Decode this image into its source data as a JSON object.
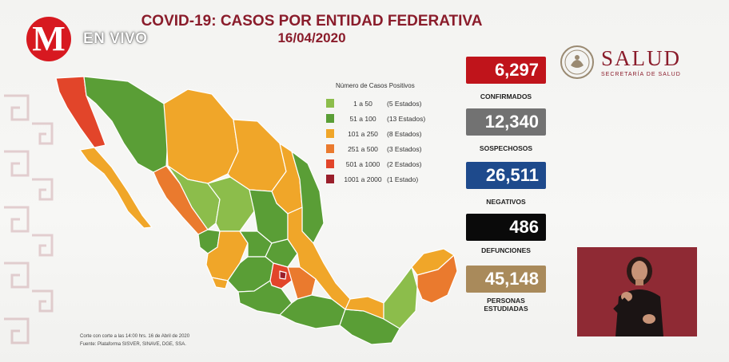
{
  "broadcast": {
    "logo_letter": "M",
    "live_label": "EN VIVO"
  },
  "header": {
    "title": "COVID-19: CASOS POR ENTIDAD FEDERATIVA",
    "date": "16/04/2020"
  },
  "agency": {
    "name": "SALUD",
    "subtitle": "SECRETARÍA DE SALUD"
  },
  "legend": {
    "title": "Número de Casos Positivos",
    "items": [
      {
        "range": "1 a 50",
        "count": "(5 Estados)",
        "color": "#8cbd4b"
      },
      {
        "range": "51 a 100",
        "count": "(13 Estados)",
        "color": "#5a9e36"
      },
      {
        "range": "101 a 250",
        "count": "(8 Estados)",
        "color": "#f0a629"
      },
      {
        "range": "251 a 500",
        "count": "(3 Estados)",
        "color": "#ea7a2e"
      },
      {
        "range": "501 a 1000",
        "count": "(2 Estados)",
        "color": "#e2452a"
      },
      {
        "range": "1001 a 2000",
        "count": "(1 Estado)",
        "color": "#9a1f2b"
      }
    ]
  },
  "stats": [
    {
      "value": "6,297",
      "label": "CONFIRMADOS",
      "color": "#c0141b"
    },
    {
      "value": "12,340",
      "label": "SOSPECHOSOS",
      "color": "#727272"
    },
    {
      "value": "26,511",
      "label": "NEGATIVOS",
      "color": "#1e4a8c"
    },
    {
      "value": "486",
      "label": "DEFUNCIONES",
      "color": "#0a0a0a"
    },
    {
      "value": "45,148",
      "label_line1": "PERSONAS",
      "label_line2": "ESTUDIADAS",
      "color": "#a98a5b"
    }
  ],
  "footnote": {
    "line1": "Corte con corte a las 14:00 hrs. 16 de Abril de 2020",
    "line2": "Fuente: Plataforma SISVER, SINAVE, DGE, SSA."
  }
}
